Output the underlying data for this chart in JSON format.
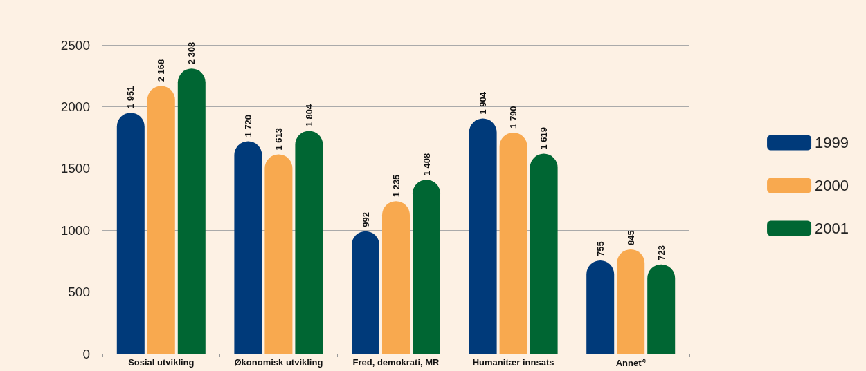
{
  "chart_data": {
    "type": "bar",
    "categories": [
      "Sosial utvikling",
      "Økonomisk utvikling",
      "Fred, demokrati, MR",
      "Humanitær innsats",
      "Annet$^{2)}$"
    ],
    "series": [
      {
        "name": "1999",
        "color": "#003a7a",
        "values": [
          1951,
          1720,
          992,
          1904,
          755
        ],
        "value_labels": [
          "1 951",
          "1 720",
          "992",
          "1 904",
          "755"
        ]
      },
      {
        "name": "2000",
        "color": "#f8a94f",
        "values": [
          2168,
          1613,
          1235,
          1790,
          845
        ],
        "value_labels": [
          "2 168",
          "1 613",
          "1 235",
          "1 790",
          "845"
        ]
      },
      {
        "name": "2001",
        "color": "#006633",
        "values": [
          2308,
          1804,
          1408,
          1619,
          723
        ],
        "value_labels": [
          "2 308",
          "1 804",
          "1 408",
          "1 619",
          "723"
        ]
      }
    ],
    "ylim": [
      0,
      2500
    ],
    "yticks": [
      0,
      500,
      1000,
      1500,
      2000,
      2500
    ],
    "grid": "y",
    "legend": "right"
  }
}
